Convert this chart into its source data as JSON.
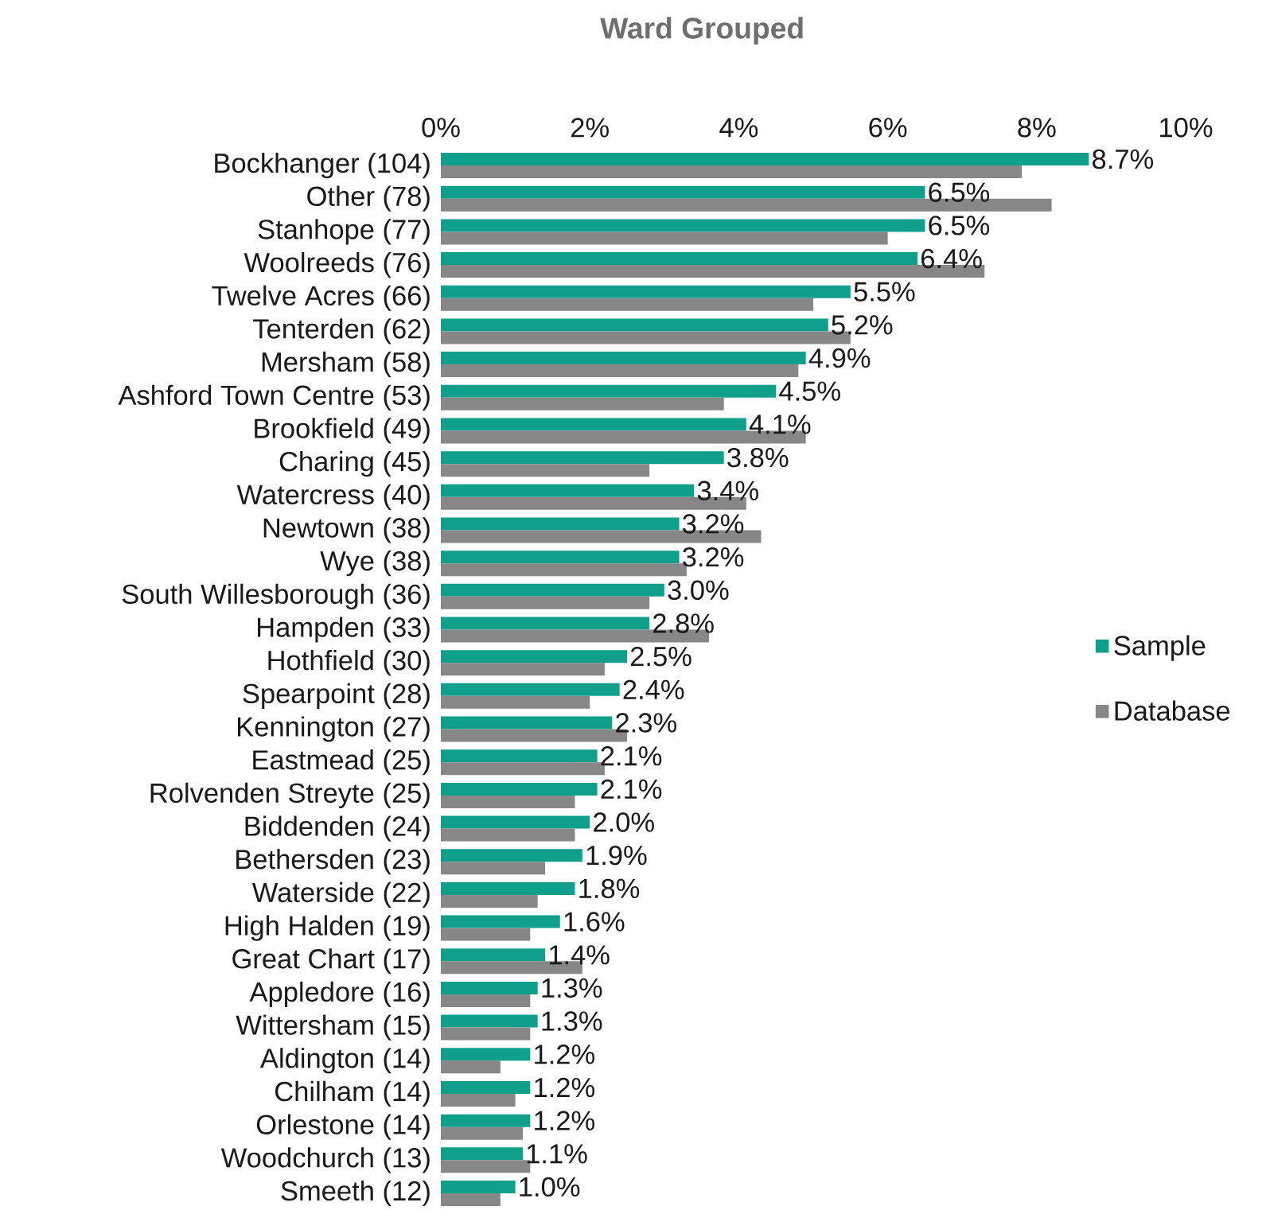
{
  "chart_data": {
    "type": "bar",
    "orientation": "horizontal",
    "title": "Ward Grouped",
    "categories": [
      "Bockhanger (104)",
      "Other (78)",
      "Stanhope (77)",
      "Woolreeds (76)",
      "Twelve Acres (66)",
      "Tenterden (62)",
      "Mersham (58)",
      "Ashford Town Centre (53)",
      "Brookfield (49)",
      "Charing (45)",
      "Watercress (40)",
      "Newtown (38)",
      "Wye (38)",
      "South Willesborough (36)",
      "Hampden (33)",
      "Hothfield (30)",
      "Spearpoint (28)",
      "Kennington (27)",
      "Eastmead (25)",
      "Rolvenden Streyte (25)",
      "Biddenden (24)",
      "Bethersden (23)",
      "Waterside (22)",
      "High Halden (19)",
      "Great Chart (17)",
      "Appledore (16)",
      "Wittersham (15)",
      "Aldington (14)",
      "Chilham (14)",
      "Orlestone (14)",
      "Woodchurch (13)",
      "Smeeth (12)"
    ],
    "series": [
      {
        "name": "Sample",
        "color": "#0f9f8b",
        "values": [
          8.7,
          6.5,
          6.5,
          6.4,
          5.5,
          5.2,
          4.9,
          4.5,
          4.1,
          3.8,
          3.4,
          3.2,
          3.2,
          3.0,
          2.8,
          2.5,
          2.4,
          2.3,
          2.1,
          2.1,
          2.0,
          1.9,
          1.8,
          1.6,
          1.4,
          1.3,
          1.3,
          1.2,
          1.2,
          1.2,
          1.1,
          1.0
        ],
        "value_labels": [
          "8.7%",
          "6.5%",
          "6.5%",
          "6.4%",
          "5.5%",
          "5.2%",
          "4.9%",
          "4.5%",
          "4.1%",
          "3.8%",
          "3.4%",
          "3.2%",
          "3.2%",
          "3.0%",
          "2.8%",
          "2.5%",
          "2.4%",
          "2.3%",
          "2.1%",
          "2.1%",
          "2.0%",
          "1.9%",
          "1.8%",
          "1.6%",
          "1.4%",
          "1.3%",
          "1.3%",
          "1.2%",
          "1.2%",
          "1.2%",
          "1.1%",
          "1.0%"
        ]
      },
      {
        "name": "Database",
        "color": "#878787",
        "values": [
          7.8,
          8.2,
          6.0,
          7.3,
          5.0,
          5.5,
          4.8,
          3.8,
          4.9,
          2.8,
          4.1,
          4.3,
          3.3,
          2.8,
          3.6,
          2.2,
          2.0,
          2.5,
          2.2,
          1.8,
          1.8,
          1.4,
          1.3,
          1.2,
          1.9,
          1.2,
          1.2,
          0.8,
          1.0,
          1.1,
          1.2,
          0.8
        ]
      }
    ],
    "xlim": [
      0,
      10
    ],
    "xticks": [
      {
        "value": 0,
        "label": "0%"
      },
      {
        "value": 2,
        "label": "2%"
      },
      {
        "value": 4,
        "label": "4%"
      },
      {
        "value": 6,
        "label": "6%"
      },
      {
        "value": 8,
        "label": "8%"
      },
      {
        "value": 10,
        "label": "10%"
      }
    ],
    "legend": "right",
    "grid": false
  }
}
